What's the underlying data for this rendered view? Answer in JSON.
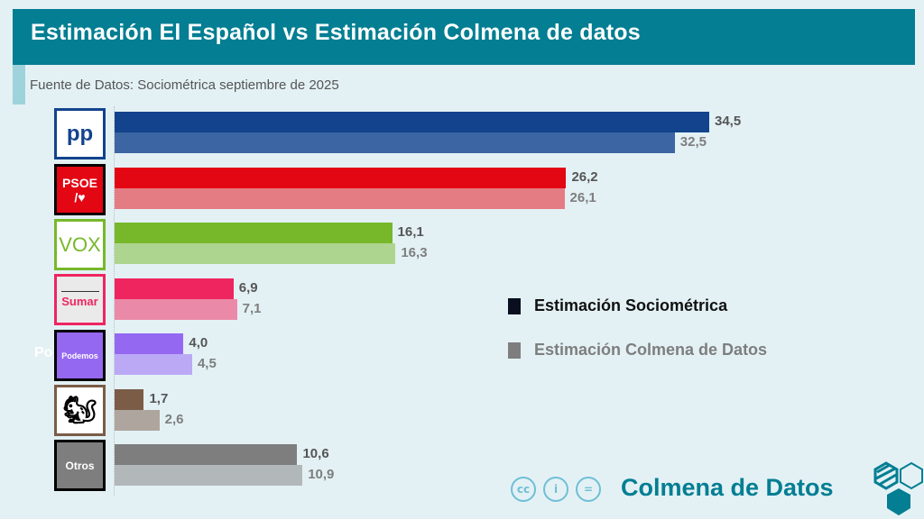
{
  "header": {
    "title": "Estimación El Español vs Estimación Colmena de datos",
    "subtitle": "Fuente de Datos: Sociométrica septiembre de 2025"
  },
  "chart_data": {
    "type": "bar",
    "orientation": "horizontal",
    "categories": [
      "PP",
      "PSOE",
      "VOX",
      "Sumar",
      "Podemos",
      "SALF",
      "Otros"
    ],
    "series": [
      {
        "name": "Estimación Sociométrica",
        "values": [
          34.5,
          26.2,
          16.1,
          6.9,
          4.0,
          1.7,
          10.6
        ],
        "labels": [
          "34,5",
          "26,2",
          "16,1",
          "6,9",
          "4,0",
          "1,7",
          "10,6"
        ]
      },
      {
        "name": "Estimación Colmena de Datos",
        "values": [
          32.5,
          26.1,
          16.3,
          7.1,
          4.5,
          2.6,
          10.9
        ],
        "labels": [
          "32,5",
          "26,1",
          "16,3",
          "7,1",
          "4,5",
          "2,6",
          "10,9"
        ]
      }
    ],
    "colors": [
      [
        "#12438c",
        "#3c66a3"
      ],
      [
        "#e30613",
        "#e47c84"
      ],
      [
        "#77b82a",
        "#aed58f"
      ],
      [
        "#ef2560",
        "#eb8aa8"
      ],
      [
        "#9568f2",
        "#bba9f6"
      ],
      [
        "#7a5c47",
        "#aea69e"
      ],
      [
        "#7e7e7e",
        "#b2b8b9"
      ]
    ],
    "legend_colors": [
      "#0a0f1f",
      "#7e7e7e"
    ],
    "legend_placement": "right",
    "xlim": [
      0,
      34.5
    ]
  },
  "logos": {
    "pp": "pp",
    "psoe_line1": "PSOE",
    "psoe_line2": "/♥",
    "vox": "VOX",
    "sumar": "Sumar",
    "podemos": "Podemos",
    "otros": "Otros",
    "clipped": "Po"
  },
  "footer": {
    "brand": "Colmena de Datos",
    "license": [
      "cc",
      "i",
      "="
    ]
  }
}
